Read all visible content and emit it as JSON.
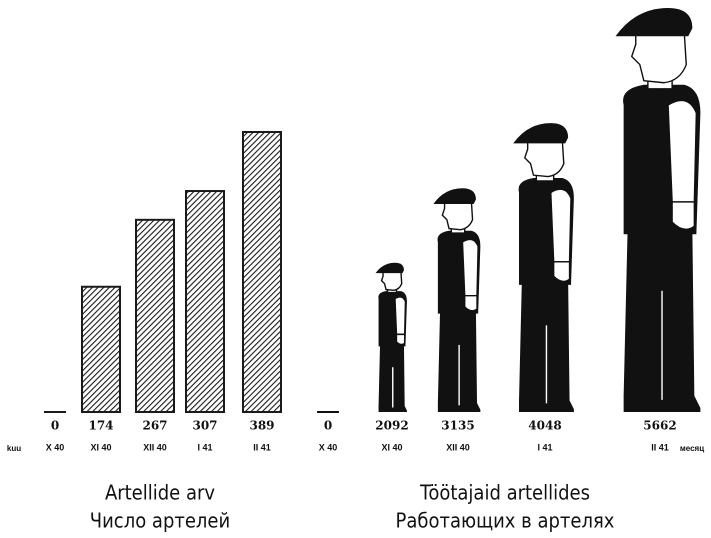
{
  "chart_data": [
    {
      "type": "bar",
      "title": "Artellide arv",
      "subtitle": "Число артелей",
      "xlabel": "kuu",
      "categories": [
        "X 40",
        "XI 40",
        "XII 40",
        "I 41",
        "II 41"
      ],
      "values": [
        0,
        174,
        267,
        307,
        389
      ],
      "color": "#1a1a1a"
    },
    {
      "type": "pictogram",
      "title": "Töötajaid artellides",
      "subtitle": "Работающих в артелях",
      "xlabel": "месяц",
      "categories": [
        "X 40",
        "XI 40",
        "XII 40",
        "I 41",
        "II 41"
      ],
      "values": [
        0,
        2092,
        3135,
        4048,
        5662
      ],
      "color": "#111111"
    }
  ]
}
